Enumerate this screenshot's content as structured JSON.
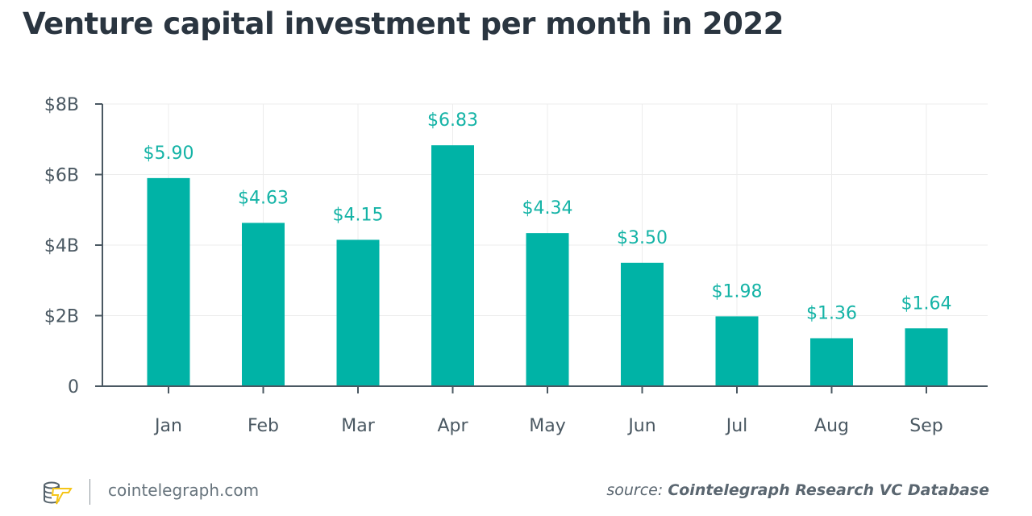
{
  "chart_data": {
    "type": "bar",
    "title": "Venture capital investment per month in 2022",
    "categories": [
      "Jan",
      "Feb",
      "Mar",
      "Apr",
      "May",
      "Jun",
      "Jul",
      "Aug",
      "Sep"
    ],
    "values": [
      5.9,
      4.63,
      4.15,
      6.83,
      4.34,
      3.5,
      1.98,
      1.36,
      1.64
    ],
    "data_labels": [
      "$5.90",
      "$4.63",
      "$4.15",
      "$6.83",
      "$4.34",
      "$3.50",
      "$1.98",
      "$1.36",
      "$1.64"
    ],
    "unit": "billions USD",
    "ylim": [
      0,
      8
    ],
    "yticks": [
      {
        "v": 0,
        "label": "0"
      },
      {
        "v": 2,
        "label": "$2B"
      },
      {
        "v": 4,
        "label": "$4B"
      },
      {
        "v": 6,
        "label": "$6B"
      },
      {
        "v": 8,
        "label": "$8B"
      }
    ],
    "grid": true,
    "bar_color": "#00b3a6",
    "label_color": "#14b3a6",
    "xlabel": "",
    "ylabel": ""
  },
  "footer": {
    "site": "cointelegraph.com",
    "source_prefix": "source: ",
    "source_name": "Cointelegraph Research VC Database",
    "logo_icon": "cointelegraph-logo-icon"
  }
}
